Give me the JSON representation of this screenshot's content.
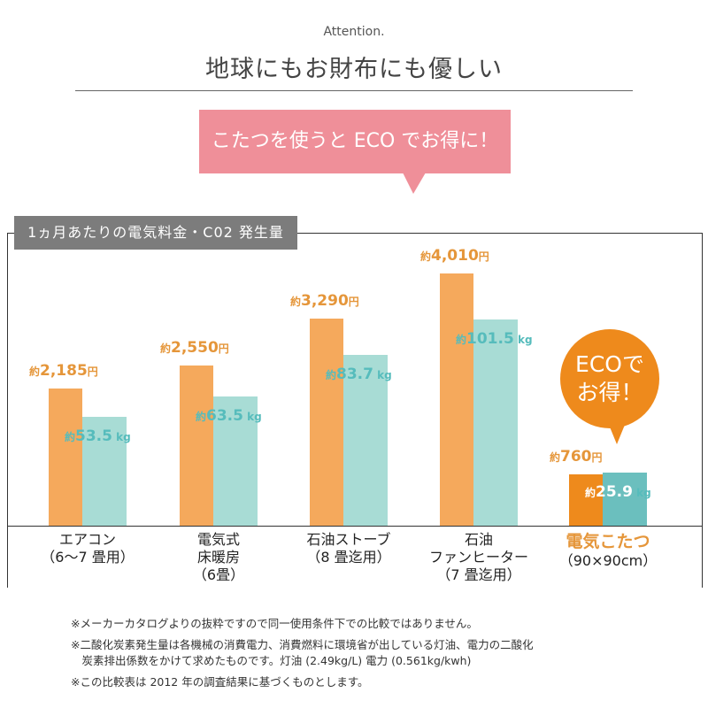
{
  "header": {
    "attention": "Attention.",
    "title": "地球にもお財布にも優しい",
    "bubble": "こたつを使うと ECO でお得に！"
  },
  "chip": "1ヵ月あたりの電気料金・C02 発生量",
  "eco_badge": {
    "line1": "ECOで",
    "line2": "お得！"
  },
  "colors": {
    "cost": "#f5a95c",
    "co2": "#a8dcd5",
    "cost_highlight": "#ee8a1c",
    "co2_highlight": "#6bbfbe",
    "cost_text": "#e5963a",
    "co2_text": "#56bcbc"
  },
  "chart_data": {
    "type": "bar",
    "title": "1ヵ月あたりの電気料金・C02 発生量",
    "categories": [
      {
        "lines": [
          "エアコン",
          "（6〜7 畳用）"
        ]
      },
      {
        "lines": [
          "電気式",
          "床暖房",
          "（6畳）"
        ]
      },
      {
        "lines": [
          "石油ストーブ",
          "（8 畳迄用）"
        ]
      },
      {
        "lines": [
          "石油",
          "ファンヒーター",
          "（7 畳迄用）"
        ]
      },
      {
        "lines": [
          "電気こたつ",
          "（90×90cm）"
        ]
      }
    ],
    "series": [
      {
        "name": "電気料金",
        "unit": "円",
        "prefix": "約",
        "values": [
          2185,
          2550,
          3290,
          4010,
          760
        ],
        "labels": [
          "2,185",
          "2,550",
          "3,290",
          "4,010",
          "760"
        ]
      },
      {
        "name": "CO2発生量",
        "unit": "kg",
        "prefix": "約",
        "values": [
          53.5,
          63.5,
          83.7,
          101.5,
          25.9
        ],
        "labels": [
          "53.5",
          "63.5",
          "83.7",
          "101.5",
          "25.9"
        ]
      }
    ]
  },
  "notes": [
    "※メーカーカタログよりの抜粋ですので同一使用条件下での比較ではありません。",
    "※二酸化炭素発生量は各機械の消費電力、消費燃料に環境省が出している灯油、電力の二酸化",
    "　炭素排出係数をかけて求めたものです。灯油 (2.49kg/L) 電力 (0.561kg/kwh)",
    "※この比較表は 2012 年の調査結果に基づくものとします。"
  ]
}
